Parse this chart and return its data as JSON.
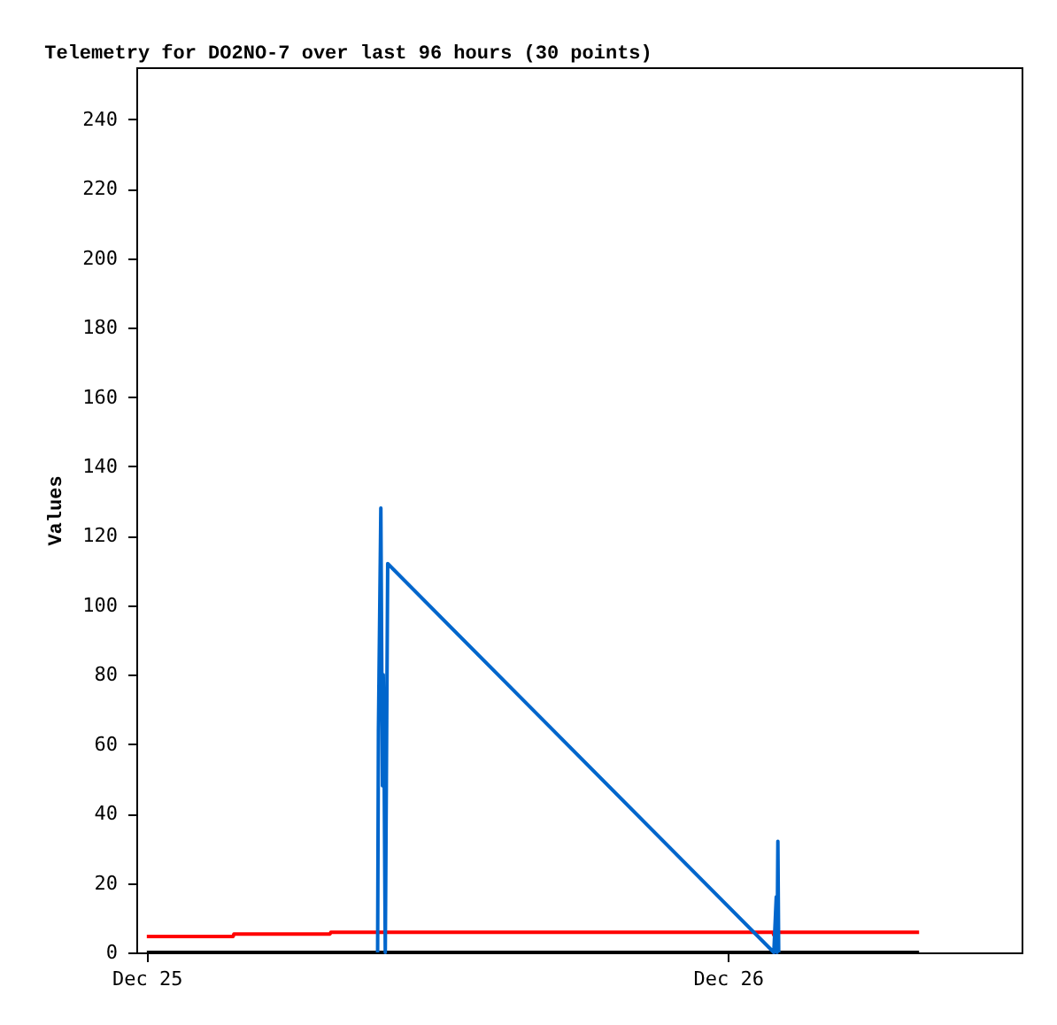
{
  "chart_data": {
    "type": "line",
    "title": "Telemetry for DO2NO-7 over last 96 hours (30 points)",
    "ylabel": "Values",
    "xlim": [
      "--12-24T23:34",
      "--12-26T12:08"
    ],
    "xticks": [
      {
        "value": "--12-25T00:00",
        "label": "Dec 25"
      },
      {
        "value": "--12-26T00:00",
        "label": "Dec 26"
      }
    ],
    "ylim": [
      0,
      255
    ],
    "yticks": [
      0,
      20,
      40,
      60,
      80,
      100,
      120,
      140,
      160,
      180,
      200,
      220,
      240
    ],
    "grid": false,
    "series": [
      {
        "color": "#000000",
        "x": [
          "--12-25T00:00",
          "--12-26T07:54"
        ],
        "values": [
          0,
          0
        ]
      },
      {
        "color": "#ff0000",
        "x": [
          "--12-25T00:00",
          "--12-25T03:34",
          "--12-25T03:36",
          "--12-25T07:34",
          "--12-25T07:36",
          "--12-26T01:52",
          "--12-26T01:54",
          "--12-26T01:58",
          "--12-26T07:54"
        ],
        "values": [
          4.6,
          4.6,
          5.3,
          5.3,
          5.8,
          5.8,
          5,
          5.8,
          5.8
        ]
      },
      {
        "color": "#0066cc",
        "x": [
          "--12-25T09:32",
          "--12-25T09:34",
          "--12-25T09:40",
          "--12-25T09:44",
          "--12-25T09:46",
          "--12-25T09:48",
          "--12-25T09:51",
          "--12-25T09:57",
          "--12-26T01:54",
          "--12-26T02:00",
          "--12-26T02:02",
          "--12-26T02:04",
          "--12-26T02:06"
        ],
        "values": [
          0,
          64,
          128,
          48,
          80,
          56,
          0,
          112,
          0,
          16,
          0,
          32,
          0
        ]
      }
    ]
  }
}
